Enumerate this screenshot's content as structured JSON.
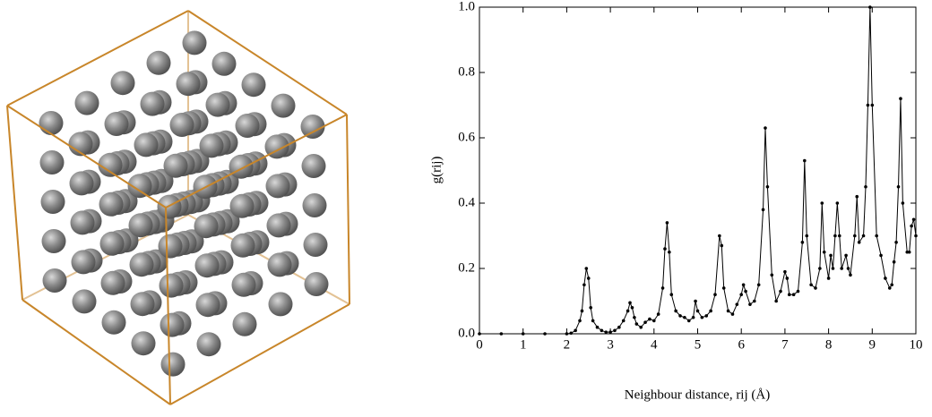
{
  "chart_data": {
    "type": "line",
    "xlabel": "Neighbour distance, rij (Å)",
    "ylabel": "g(rij)",
    "color": "#000000",
    "x": [
      0,
      0.5,
      1,
      1.5,
      2.0,
      2.1,
      2.2,
      2.3,
      2.35,
      2.4,
      2.45,
      2.5,
      2.55,
      2.6,
      2.7,
      2.8,
      2.9,
      3.0,
      3.1,
      3.2,
      3.3,
      3.4,
      3.45,
      3.5,
      3.55,
      3.6,
      3.7,
      3.8,
      3.9,
      4.0,
      4.1,
      4.2,
      4.25,
      4.3,
      4.35,
      4.4,
      4.5,
      4.6,
      4.7,
      4.8,
      4.9,
      4.95,
      5.0,
      5.1,
      5.2,
      5.3,
      5.4,
      5.5,
      5.55,
      5.6,
      5.7,
      5.8,
      5.9,
      6.0,
      6.05,
      6.1,
      6.2,
      6.3,
      6.4,
      6.5,
      6.55,
      6.6,
      6.7,
      6.8,
      6.9,
      7.0,
      7.05,
      7.1,
      7.2,
      7.3,
      7.4,
      7.45,
      7.5,
      7.6,
      7.7,
      7.8,
      7.85,
      7.9,
      8.0,
      8.05,
      8.1,
      8.15,
      8.2,
      8.25,
      8.3,
      8.4,
      8.45,
      8.5,
      8.6,
      8.65,
      8.7,
      8.8,
      8.85,
      8.9,
      8.95,
      9.0,
      9.1,
      9.2,
      9.3,
      9.4,
      9.45,
      9.5,
      9.55,
      9.6,
      9.65,
      9.7,
      9.8,
      9.85,
      9.9,
      9.95,
      10.0
    ],
    "values": [
      0,
      0,
      0,
      0,
      0,
      0.002,
      0.01,
      0.04,
      0.07,
      0.15,
      0.2,
      0.17,
      0.08,
      0.04,
      0.02,
      0.01,
      0.005,
      0.005,
      0.01,
      0.02,
      0.04,
      0.07,
      0.095,
      0.08,
      0.05,
      0.03,
      0.02,
      0.035,
      0.045,
      0.04,
      0.06,
      0.14,
      0.26,
      0.34,
      0.25,
      0.12,
      0.07,
      0.055,
      0.05,
      0.04,
      0.05,
      0.1,
      0.07,
      0.05,
      0.055,
      0.07,
      0.12,
      0.3,
      0.27,
      0.14,
      0.07,
      0.06,
      0.09,
      0.12,
      0.15,
      0.13,
      0.09,
      0.1,
      0.15,
      0.38,
      0.63,
      0.45,
      0.18,
      0.1,
      0.13,
      0.19,
      0.17,
      0.12,
      0.12,
      0.13,
      0.28,
      0.53,
      0.3,
      0.15,
      0.14,
      0.2,
      0.4,
      0.25,
      0.17,
      0.24,
      0.2,
      0.3,
      0.4,
      0.3,
      0.2,
      0.24,
      0.2,
      0.18,
      0.3,
      0.42,
      0.28,
      0.3,
      0.45,
      0.7,
      1.0,
      0.7,
      0.3,
      0.24,
      0.17,
      0.14,
      0.15,
      0.22,
      0.28,
      0.45,
      0.72,
      0.4,
      0.25,
      0.25,
      0.33,
      0.35,
      0.3
    ],
    "xlim": [
      0,
      10
    ],
    "ylim": [
      0,
      1
    ],
    "xticks": [
      0,
      1,
      2,
      3,
      4,
      5,
      6,
      7,
      8,
      9,
      10
    ],
    "yticks": [
      {
        "value": 0,
        "label": "0.0"
      },
      0.2,
      0.4,
      0.6,
      0.8,
      {
        "value": 1,
        "label": "1.0"
      }
    ]
  }
}
